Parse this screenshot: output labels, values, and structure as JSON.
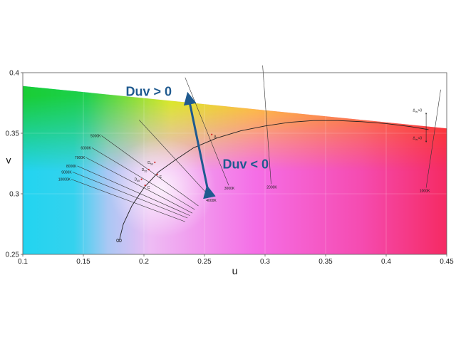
{
  "chart_data": {
    "type": "scatter",
    "xlabel": "u",
    "ylabel": "v",
    "xlim": [
      0.1,
      0.45
    ],
    "ylim": [
      0.25,
      0.4
    ],
    "xticks": [
      {
        "value": 0.1,
        "label": "0.1"
      },
      {
        "value": 0.15,
        "label": "0.15"
      },
      {
        "value": 0.2,
        "label": "0.2"
      },
      {
        "value": 0.25,
        "label": "0.25"
      },
      {
        "value": 0.3,
        "label": "0.3"
      },
      {
        "value": 0.35,
        "label": "0.35"
      },
      {
        "value": 0.4,
        "label": "0.4"
      },
      {
        "value": 0.45,
        "label": "0.45"
      }
    ],
    "yticks": [
      {
        "value": 0.25,
        "label": "0.25"
      },
      {
        "value": 0.3,
        "label": "0.3"
      },
      {
        "value": 0.35,
        "label": "0.35"
      },
      {
        "value": 0.4,
        "label": "0.4"
      }
    ],
    "grid": true,
    "gamut_edge": [
      [
        0.1,
        0.389
      ],
      [
        0.45,
        0.354
      ]
    ],
    "planckian_locus": [
      [
        0.18,
        0.263
      ],
      [
        0.183,
        0.275
      ],
      [
        0.19,
        0.29
      ],
      [
        0.2,
        0.305
      ],
      [
        0.212,
        0.318
      ],
      [
        0.226,
        0.328
      ],
      [
        0.241,
        0.338
      ],
      [
        0.26,
        0.346
      ],
      [
        0.28,
        0.352
      ],
      [
        0.3,
        0.356
      ],
      [
        0.32,
        0.359
      ],
      [
        0.34,
        0.3605
      ],
      [
        0.36,
        0.3605
      ],
      [
        0.38,
        0.3595
      ],
      [
        0.4,
        0.358
      ],
      [
        0.42,
        0.3555
      ],
      [
        0.435,
        0.353
      ]
    ],
    "infinity_label": {
      "text": "∞",
      "u": 0.18,
      "v": 0.263
    },
    "isotemperature_lines": [
      {
        "label": "1000K",
        "from": [
          0.445,
          0.386
        ],
        "to": [
          0.433,
          0.305
        ]
      },
      {
        "label": "2000K",
        "from": [
          0.298,
          0.406
        ],
        "to": [
          0.305,
          0.308
        ]
      },
      {
        "label": "3000K",
        "from": [
          0.234,
          0.396
        ],
        "to": [
          0.27,
          0.307
        ]
      },
      {
        "label": "4000K",
        "from": [
          0.196,
          0.361
        ],
        "to": [
          0.255,
          0.297
        ]
      },
      {
        "label": "5000K",
        "from": [
          0.165,
          0.348
        ],
        "to": [
          0.245,
          0.29
        ]
      },
      {
        "label": "6000K",
        "from": [
          0.157,
          0.338
        ],
        "to": [
          0.242,
          0.287
        ]
      },
      {
        "label": "7000K",
        "from": [
          0.152,
          0.33
        ],
        "to": [
          0.24,
          0.284
        ]
      },
      {
        "label": "8000K",
        "from": [
          0.145,
          0.323
        ],
        "to": [
          0.238,
          0.282
        ]
      },
      {
        "label": "9000K",
        "from": [
          0.141,
          0.318
        ],
        "to": [
          0.236,
          0.28
        ]
      },
      {
        "label": "10000K",
        "from": [
          0.14,
          0.312
        ],
        "to": [
          0.234,
          0.277
        ]
      }
    ],
    "illuminants": [
      {
        "label": "A",
        "sub": "",
        "u": 0.256,
        "v": 0.349
      },
      {
        "label": "E",
        "sub": "",
        "u": 0.211,
        "v": 0.316
      },
      {
        "label": "D",
        "sub": "50",
        "u": 0.209,
        "v": 0.326
      },
      {
        "label": "D",
        "sub": "55",
        "u": 0.204,
        "v": 0.32
      },
      {
        "label": "D",
        "sub": "65",
        "u": 0.198,
        "v": 0.312
      },
      {
        "label": "C",
        "sub": "",
        "u": 0.201,
        "v": 0.307
      }
    ],
    "annotations": [
      {
        "text": "Duv > 0",
        "u": 0.185,
        "v": 0.381
      },
      {
        "text": "Duv < 0",
        "u": 0.265,
        "v": 0.321
      }
    ],
    "arrow": {
      "from": [
        0.253,
        0.302
      ],
      "to": [
        0.237,
        0.379
      ]
    },
    "delta_labels": [
      {
        "text": "Δ",
        "sub": "uv",
        "suffix": ">0",
        "u": 0.422,
        "v": 0.368
      },
      {
        "text": "Δ",
        "sub": "uv",
        "suffix": "<0",
        "u": 0.422,
        "v": 0.345
      }
    ],
    "delta_arrow": {
      "from": [
        0.433,
        0.366
      ],
      "to": [
        0.433,
        0.343
      ]
    }
  }
}
